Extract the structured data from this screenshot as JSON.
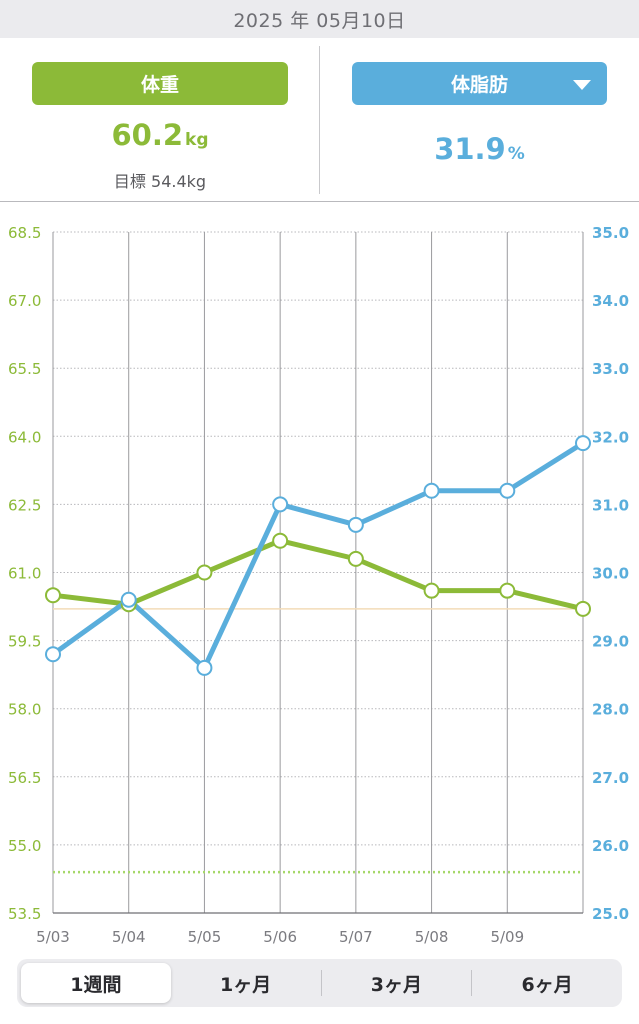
{
  "header": {
    "date": "2025 年 05月10日"
  },
  "stats": {
    "weight": {
      "label": "体重",
      "value": "60.2",
      "unit": "kg",
      "goal": "目標 54.4kg",
      "color": "#8cba38"
    },
    "body_fat": {
      "label": "体脂肪",
      "value": "31.9",
      "unit": "%",
      "color": "#5aaedc",
      "dropdown_icon": "caret-down-icon"
    }
  },
  "range_tabs": [
    {
      "label": "1週間",
      "active": true
    },
    {
      "label": "1ヶ月",
      "active": false
    },
    {
      "label": "3ヶ月",
      "active": false
    },
    {
      "label": "6ヶ月",
      "active": false
    }
  ],
  "chart_data": {
    "type": "line",
    "x_categories": [
      "5/03",
      "5/04",
      "5/05",
      "5/06",
      "5/07",
      "5/08",
      "5/09",
      ""
    ],
    "x_tick_labels": [
      "5/03",
      "5/04",
      "5/05",
      "5/06",
      "5/07",
      "5/08",
      "5/09"
    ],
    "y_left": {
      "min": 53.5,
      "max": 68.5,
      "ticks": [
        "53.5",
        "55.0",
        "56.5",
        "58.0",
        "59.5",
        "61.0",
        "62.5",
        "64.0",
        "65.5",
        "67.0",
        "68.5"
      ],
      "color": "#8cba38"
    },
    "y_right": {
      "min": 25.0,
      "max": 35.0,
      "ticks": [
        "25.0",
        "26.0",
        "27.0",
        "28.0",
        "29.0",
        "30.0",
        "31.0",
        "32.0",
        "33.0",
        "34.0",
        "35.0"
      ],
      "color": "#5aaedc"
    },
    "series": [
      {
        "axis": "left",
        "color": "#8cba38",
        "values": [
          60.5,
          60.3,
          61.0,
          61.7,
          61.3,
          60.6,
          60.6,
          60.2
        ]
      },
      {
        "axis": "right",
        "color": "#5aaedc",
        "values": [
          28.8,
          29.6,
          28.6,
          31.0,
          30.7,
          31.2,
          31.2,
          31.9
        ]
      }
    ],
    "reference_lines": [
      {
        "axis": "left",
        "value": 54.4,
        "style": "dotted",
        "color": "#a6d86a"
      },
      {
        "axis": "left",
        "value": 60.2,
        "style": "solid",
        "color": "#f3dcb8"
      }
    ],
    "grid": true
  }
}
